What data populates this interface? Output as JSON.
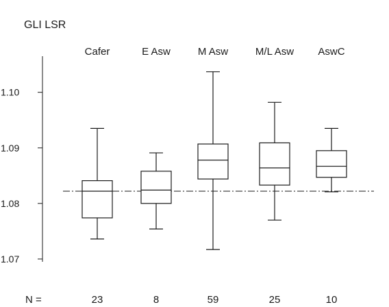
{
  "chart_data": {
    "type": "boxplot",
    "title": "GLI LSR",
    "ylim": [
      1.0695,
      1.1065
    ],
    "y_ticks": [
      {
        "value": 1.07,
        "label": "1.07"
      },
      {
        "value": 1.08,
        "label": "1.08"
      },
      {
        "value": 1.09,
        "label": "1.09"
      },
      {
        "value": 1.1,
        "label": "1.10"
      }
    ],
    "categories": [
      "Cafer",
      "E Asw",
      "M Asw",
      "M/L Asw",
      "AswC"
    ],
    "boxes": [
      {
        "name": "Cafer",
        "min": 1.0736,
        "q1": 1.0774,
        "median": 1.0822,
        "q3": 1.0841,
        "max": 1.0935
      },
      {
        "name": "E Asw",
        "min": 1.0754,
        "q1": 1.08,
        "median": 1.0824,
        "q3": 1.0858,
        "max": 1.0891
      },
      {
        "name": "M Asw",
        "min": 1.0717,
        "q1": 1.0844,
        "median": 1.0878,
        "q3": 1.0907,
        "max": 1.1037
      },
      {
        "name": "M/L Asw",
        "min": 1.077,
        "q1": 1.0833,
        "median": 1.0864,
        "q3": 1.0909,
        "max": 1.0982
      },
      {
        "name": "AswC",
        "min": 1.0821,
        "q1": 1.0847,
        "median": 1.0867,
        "q3": 1.0895,
        "max": 1.0935
      }
    ],
    "reference_line": 1.0822,
    "n_label": "N =",
    "n_values": [
      "23",
      "8",
      "59",
      "25",
      "10"
    ]
  }
}
